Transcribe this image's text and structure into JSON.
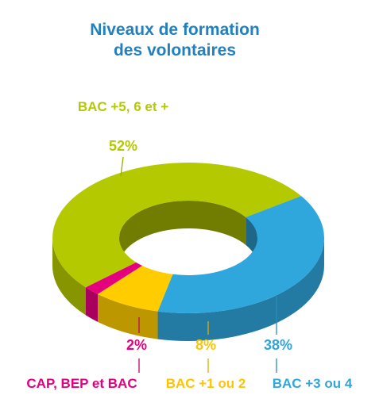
{
  "chart_data": {
    "type": "pie",
    "title": "Niveaux de formation des volontaires",
    "title_lines": [
      "Niveaux de formation",
      "des volontaires"
    ],
    "categories": [
      "BAC +5, 6 et +",
      "BAC +3 ou 4",
      "BAC +1 ou 2",
      "CAP, BEP et BAC"
    ],
    "values": [
      52,
      38,
      8,
      2
    ],
    "value_labels": [
      "52%",
      "38%",
      "8%",
      "2%"
    ],
    "colors": [
      "#b5c900",
      "#2fa6dc",
      "#ffcc00",
      "#e5007e"
    ],
    "style": "3d-donut"
  }
}
